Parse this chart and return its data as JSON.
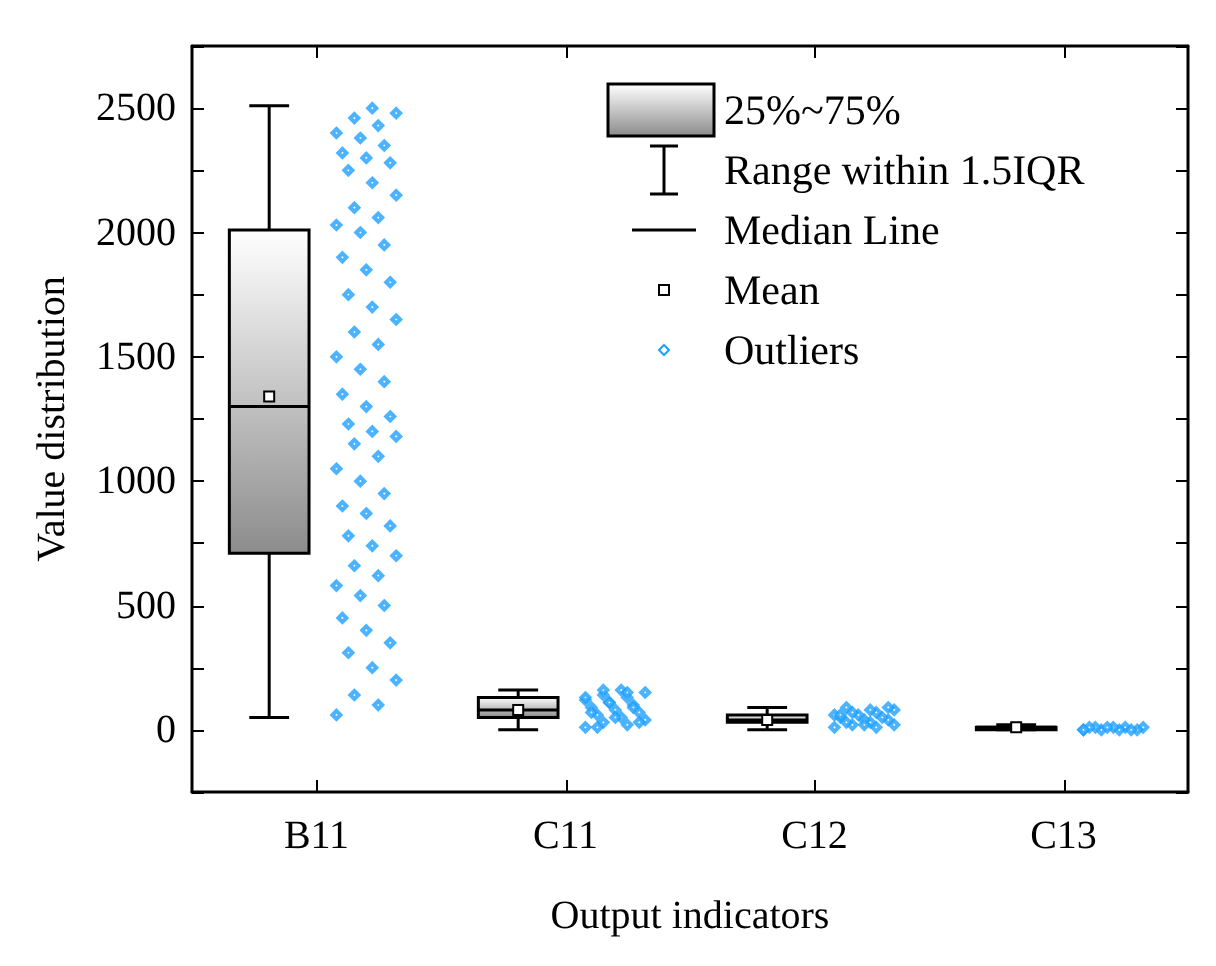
{
  "chart_data": {
    "type": "box",
    "xlabel": "Output indicators",
    "ylabel": "Value distribution",
    "categories": [
      "B11",
      "C11",
      "C12",
      "C13"
    ],
    "ylim": [
      -250,
      2750
    ],
    "yticks": [
      0,
      500,
      1000,
      1500,
      2000,
      2500
    ],
    "grid": false,
    "legend": "top right",
    "annotations": [
      "Range within 1.5IQR",
      "Median Line",
      "Mean"
    ],
    "series": [
      {
        "name": "25%~75%",
        "color": "#8c8c8c",
        "boxes": [
          {
            "low": 50,
            "q1": 710,
            "median": 1300,
            "q3": 2010,
            "high": 2510,
            "mean": 1340
          },
          {
            "low": 0,
            "q1": 50,
            "median": 80,
            "q3": 130,
            "high": 160,
            "mean": 80
          },
          {
            "low": 0,
            "q1": 30,
            "median": 40,
            "q3": 60,
            "high": 90,
            "mean": 40
          },
          {
            "low": 0,
            "q1": 0,
            "median": 10,
            "q3": 10,
            "high": 20,
            "mean": 10
          }
        ]
      },
      {
        "type": "scatter",
        "name": "Outliers",
        "color": "#1ea0ff",
        "marker": "diamond",
        "x": [
          "B11",
          "B11",
          "B11",
          "B11",
          "B11",
          "B11",
          "B11",
          "B11",
          "B11",
          "B11",
          "B11",
          "B11",
          "B11",
          "B11",
          "B11",
          "B11",
          "B11",
          "B11",
          "B11",
          "B11",
          "B11",
          "B11",
          "B11",
          "B11",
          "B11",
          "B11",
          "B11",
          "B11",
          "B11",
          "B11",
          "B11",
          "B11",
          "B11",
          "B11",
          "B11",
          "B11",
          "B11",
          "B11",
          "B11",
          "B11",
          "B11",
          "B11",
          "B11",
          "B11",
          "B11",
          "B11",
          "B11",
          "B11",
          "B11",
          "B11",
          "B11",
          "B11",
          "B11",
          "B11",
          "B11",
          "B11",
          "B11",
          "B11",
          "B11",
          "B11",
          "C11",
          "C11",
          "C11",
          "C11",
          "C11",
          "C11",
          "C11",
          "C11",
          "C11",
          "C11",
          "C11",
          "C11",
          "C11",
          "C11",
          "C11",
          "C11",
          "C11",
          "C11",
          "C11",
          "C11",
          "C11",
          "C11",
          "C11",
          "C11",
          "C11",
          "C12",
          "C12",
          "C12",
          "C12",
          "C12",
          "C12",
          "C12",
          "C12",
          "C12",
          "C12",
          "C12",
          "C12",
          "C12",
          "C12",
          "C12",
          "C12",
          "C12",
          "C12",
          "C12",
          "C12",
          "C13",
          "C13",
          "C13",
          "C13",
          "C13",
          "C13",
          "C13",
          "C13",
          "C13",
          "C13",
          "C13",
          "C13"
        ],
        "values": [
          60,
          100,
          140,
          200,
          250,
          310,
          350,
          400,
          450,
          500,
          540,
          580,
          620,
          660,
          700,
          740,
          780,
          820,
          870,
          900,
          950,
          1000,
          1050,
          1100,
          1150,
          1180,
          1200,
          1230,
          1260,
          1300,
          1350,
          1400,
          1450,
          1500,
          1550,
          1600,
          1650,
          1700,
          1750,
          1800,
          1850,
          1900,
          1950,
          2000,
          2030,
          2060,
          2100,
          2150,
          2200,
          2250,
          2280,
          2300,
          2320,
          2350,
          2380,
          2400,
          2430,
          2460,
          2480,
          2500,
          10,
          20,
          30,
          40,
          50,
          60,
          70,
          80,
          90,
          100,
          110,
          120,
          130,
          140,
          150,
          160,
          10,
          30,
          50,
          70,
          90,
          110,
          130,
          150,
          160,
          10,
          10,
          20,
          20,
          30,
          30,
          40,
          40,
          50,
          50,
          60,
          60,
          70,
          70,
          80,
          80,
          90,
          90,
          20,
          60,
          0,
          10,
          0,
          10,
          0,
          10,
          0,
          10,
          10,
          0,
          10,
          0
        ]
      }
    ]
  }
}
